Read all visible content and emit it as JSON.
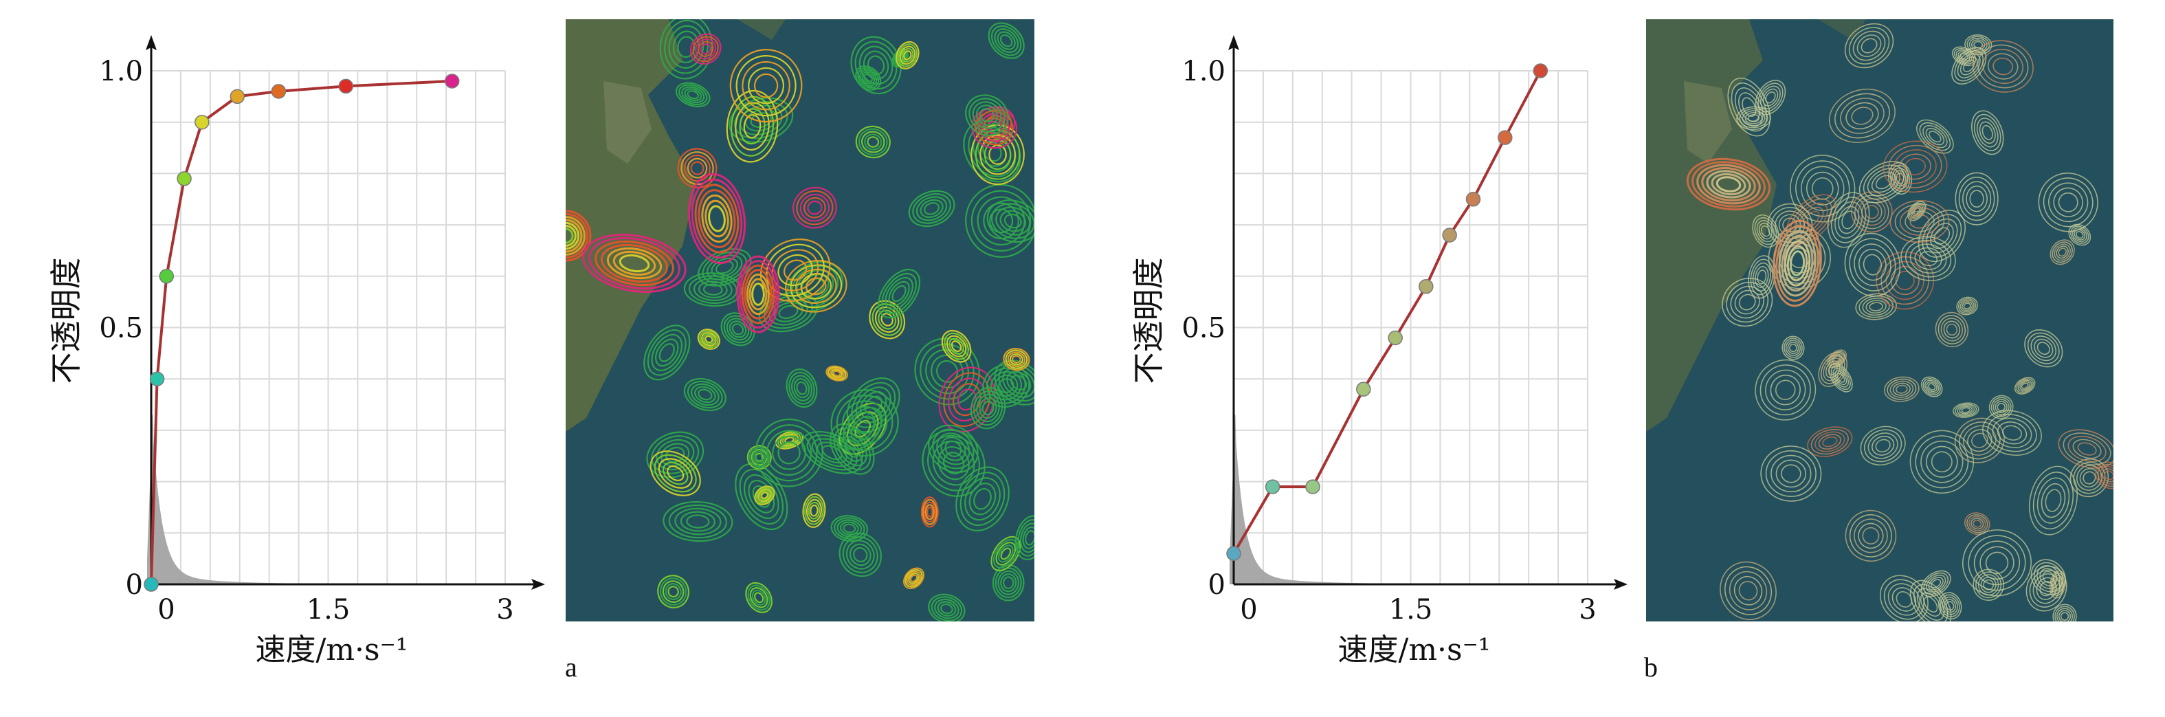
{
  "chart_data": [
    {
      "type": "line",
      "panel": "a",
      "xlabel": "速度/m·s⁻¹",
      "ylabel": "不透明度",
      "xlim": [
        0,
        3
      ],
      "ylim": [
        0,
        1
      ],
      "x_ticks": [
        "0",
        "1.5",
        "3"
      ],
      "y_ticks": [
        "0",
        "0.5",
        "1.0"
      ],
      "grid": true,
      "points": [
        {
          "x": 0.0,
          "y": 0.0,
          "color": "#25b9b9"
        },
        {
          "x": 0.05,
          "y": 0.4,
          "color": "#2bc3a8"
        },
        {
          "x": 0.13,
          "y": 0.6,
          "color": "#55cc3c"
        },
        {
          "x": 0.28,
          "y": 0.79,
          "color": "#8ed42e"
        },
        {
          "x": 0.43,
          "y": 0.9,
          "color": "#d8d42c"
        },
        {
          "x": 0.73,
          "y": 0.95,
          "color": "#e0a426"
        },
        {
          "x": 1.08,
          "y": 0.96,
          "color": "#e16a22"
        },
        {
          "x": 1.65,
          "y": 0.97,
          "color": "#dd2c25"
        },
        {
          "x": 2.55,
          "y": 0.98,
          "color": "#d9248c"
        }
      ]
    },
    {
      "type": "line",
      "panel": "b",
      "xlabel": "速度/m·s⁻¹",
      "ylabel": "不透明度",
      "xlim": [
        0,
        3
      ],
      "ylim": [
        0,
        1
      ],
      "x_ticks": [
        "0",
        "1.5",
        "3"
      ],
      "y_ticks": [
        "0",
        "0.5",
        "1.0"
      ],
      "grid": true,
      "points": [
        {
          "x": 0.0,
          "y": 0.06,
          "color": "#5aa7c2"
        },
        {
          "x": 0.33,
          "y": 0.19,
          "color": "#6fc3a3"
        },
        {
          "x": 0.67,
          "y": 0.19,
          "color": "#97c786"
        },
        {
          "x": 1.1,
          "y": 0.38,
          "color": "#a7c47a"
        },
        {
          "x": 1.37,
          "y": 0.48,
          "color": "#a8bd74"
        },
        {
          "x": 1.63,
          "y": 0.58,
          "color": "#b0ab6e"
        },
        {
          "x": 1.83,
          "y": 0.68,
          "color": "#b89a69"
        },
        {
          "x": 2.03,
          "y": 0.75,
          "color": "#c77f53"
        },
        {
          "x": 2.3,
          "y": 0.87,
          "color": "#d56a40"
        },
        {
          "x": 2.6,
          "y": 1.0,
          "color": "#d04a35"
        }
      ]
    }
  ],
  "panels": {
    "a": {
      "label": "a"
    },
    "b": {
      "label": "b"
    }
  },
  "colors": {
    "curve": "#a83232",
    "grid": "#d9d9d9",
    "histogram": "#9e9e9e",
    "ocean": "#244f5c",
    "land": "#566a45"
  }
}
